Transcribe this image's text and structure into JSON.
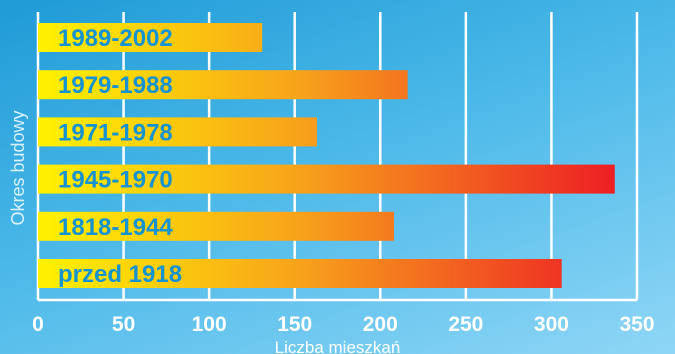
{
  "chart_data": {
    "type": "bar",
    "orientation": "horizontal",
    "title": "",
    "xlabel": "Liczba mieszkań",
    "ylabel": "Okres budowy",
    "categories": [
      "1989-2002",
      "1979-1988",
      "1971-1978",
      "1945-1970",
      "1818-1944",
      "przed 1918"
    ],
    "values": [
      131,
      216,
      163,
      337,
      208,
      306
    ],
    "xlim": [
      0,
      350
    ],
    "xticks": [
      0,
      50,
      100,
      150,
      200,
      250,
      300,
      350
    ],
    "grid": "vertical",
    "colors": {
      "background_top": "#1f9ad6",
      "background_bottom": "#8fd6f6",
      "bar_start": "#fff200",
      "bar_mid": "#f7a21b",
      "bar_end": "#ed1c24",
      "category_text": "#1592d0",
      "axis_text": "#ffffff",
      "grid": "#ffffff"
    }
  }
}
